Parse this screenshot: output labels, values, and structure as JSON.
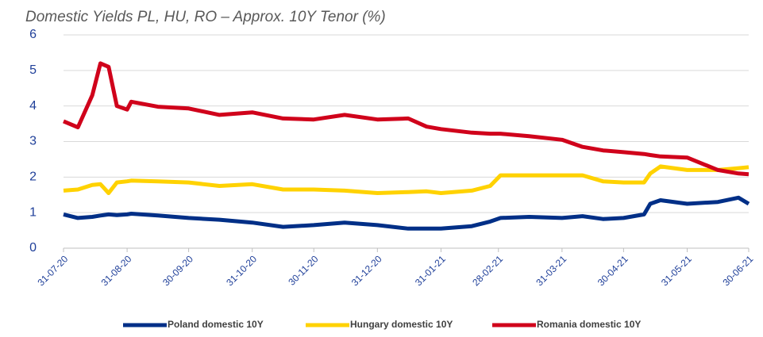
{
  "chart_data": {
    "type": "line",
    "title": "Domestic Yields PL, HU, RO – Approx. 10Y Tenor (%)",
    "x": [
      "31-07-20",
      "07-08-20",
      "14-08-20",
      "18-08-20",
      "22-08-20",
      "26-08-20",
      "31-08-20",
      "02-09-20",
      "15-09-20",
      "30-09-20",
      "15-10-20",
      "31-10-20",
      "15-11-20",
      "30-11-20",
      "15-12-20",
      "31-12-20",
      "15-01-21",
      "24-01-21",
      "31-01-21",
      "15-02-21",
      "24-02-21",
      "01-03-21",
      "15-03-21",
      "31-03-21",
      "10-04-21",
      "20-04-21",
      "30-04-21",
      "10-05-21",
      "13-05-21",
      "18-05-21",
      "31-05-21",
      "15-06-21",
      "25-06-21",
      "30-06-21"
    ],
    "series": [
      {
        "name": "Poland domestic 10Y",
        "color": "#002f87",
        "values": [
          0.95,
          0.85,
          0.88,
          0.92,
          0.95,
          0.93,
          0.95,
          0.97,
          0.92,
          0.85,
          0.8,
          0.72,
          0.6,
          0.65,
          0.72,
          0.65,
          0.55,
          0.55,
          0.55,
          0.62,
          0.75,
          0.85,
          0.88,
          0.85,
          0.9,
          0.82,
          0.85,
          0.95,
          1.25,
          1.35,
          1.25,
          1.3,
          1.42,
          1.25
        ]
      },
      {
        "name": "Hungary domestic 10Y",
        "color": "#ffd200",
        "values": [
          1.62,
          1.65,
          1.78,
          1.8,
          1.55,
          1.85,
          1.88,
          1.9,
          1.88,
          1.85,
          1.75,
          1.8,
          1.65,
          1.65,
          1.62,
          1.55,
          1.58,
          1.6,
          1.55,
          1.62,
          1.75,
          2.05,
          2.05,
          2.05,
          2.05,
          1.88,
          1.85,
          1.85,
          2.1,
          2.3,
          2.2,
          2.2,
          2.25,
          2.28
        ]
      },
      {
        "name": "Romania domestic 10Y",
        "color": "#d0021b",
        "values": [
          3.57,
          3.4,
          4.3,
          5.2,
          5.1,
          4.0,
          3.9,
          4.12,
          3.98,
          3.93,
          3.75,
          3.82,
          3.65,
          3.62,
          3.75,
          3.62,
          3.65,
          3.42,
          3.35,
          3.25,
          3.22,
          3.22,
          3.15,
          3.05,
          2.85,
          2.75,
          2.7,
          2.65,
          2.62,
          2.58,
          2.55,
          2.2,
          2.1,
          2.08
        ]
      }
    ],
    "xticks": [
      "31-07-20",
      "31-08-20",
      "30-09-20",
      "31-10-20",
      "30-11-20",
      "31-12-20",
      "31-01-21",
      "28-02-21",
      "31-03-21",
      "30-04-21",
      "31-05-21",
      "30-06-21"
    ],
    "ylim": [
      0,
      6
    ],
    "yticks": [
      0,
      1,
      2,
      3,
      4,
      5,
      6
    ],
    "grid": true,
    "legend": "bottom"
  }
}
